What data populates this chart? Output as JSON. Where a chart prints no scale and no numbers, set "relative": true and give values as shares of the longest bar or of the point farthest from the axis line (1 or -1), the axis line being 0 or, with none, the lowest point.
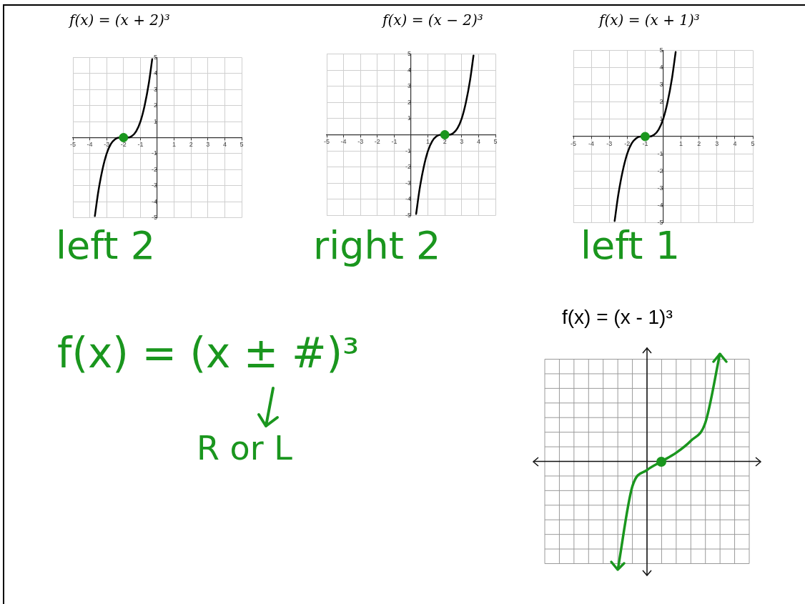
{
  "chart_data": [
    {
      "type": "line",
      "title": "f(x) = (x + 2)³",
      "xlim": [
        -5,
        5
      ],
      "ylim": [
        -5,
        5
      ],
      "xticks": [
        -5,
        -4,
        -3,
        -2,
        -1,
        1,
        2,
        3,
        4,
        5
      ],
      "yticks": [
        -5,
        -4,
        -3,
        -2,
        -1,
        1,
        2,
        3,
        4,
        5
      ],
      "grid": true,
      "annotations": [
        "left 2"
      ],
      "series": [
        {
          "type": "line",
          "color": "#000000",
          "x": [
            -3.7,
            -3.5,
            -3.25,
            -3,
            -2.75,
            -2.5,
            -2.25,
            -2,
            -1.75,
            -1.5,
            -1.25,
            -1,
            -0.75,
            -0.5,
            -0.3
          ],
          "values": [
            -4.9,
            -3.4,
            -2.0,
            -1,
            -0.4,
            -0.1,
            0,
            0,
            0,
            0.1,
            0.4,
            1,
            2.0,
            3.4,
            4.9
          ]
        },
        {
          "type": "scatter",
          "color": "#1a961e",
          "x": [
            -2
          ],
          "values": [
            0
          ]
        }
      ]
    },
    {
      "type": "line",
      "title": "f(x) = (x − 2)³",
      "xlim": [
        -5,
        5
      ],
      "ylim": [
        -5,
        5
      ],
      "xticks": [
        -5,
        -4,
        -3,
        -2,
        -1,
        1,
        2,
        3,
        4,
        5
      ],
      "yticks": [
        -5,
        -4,
        -3,
        -2,
        -1,
        1,
        2,
        3,
        4,
        5
      ],
      "grid": true,
      "annotations": [
        "right 2"
      ],
      "series": [
        {
          "type": "line",
          "color": "#000000",
          "x": [
            0.3,
            0.5,
            0.75,
            1,
            1.25,
            1.5,
            1.75,
            2,
            2.25,
            2.5,
            2.75,
            3,
            3.25,
            3.5,
            3.7
          ],
          "values": [
            -4.9,
            -3.4,
            -2.0,
            -1,
            -0.4,
            -0.1,
            0,
            0,
            0,
            0.1,
            0.4,
            1,
            2.0,
            3.4,
            4.9
          ]
        },
        {
          "type": "scatter",
          "color": "#1a961e",
          "x": [
            2
          ],
          "values": [
            0
          ]
        }
      ]
    },
    {
      "type": "line",
      "title": "f(x) = (x + 1)³",
      "xlim": [
        -5,
        5
      ],
      "ylim": [
        -5,
        5
      ],
      "xticks": [
        -5,
        -4,
        -3,
        -2,
        -1,
        1,
        2,
        3,
        4,
        5
      ],
      "yticks": [
        -5,
        -4,
        -3,
        -2,
        -1,
        1,
        2,
        3,
        4,
        5
      ],
      "grid": true,
      "annotations": [
        "left 1"
      ],
      "series": [
        {
          "type": "line",
          "color": "#000000",
          "x": [
            -2.7,
            -2.5,
            -2.25,
            -2,
            -1.75,
            -1.5,
            -1.25,
            -1,
            -0.75,
            -0.5,
            -0.25,
            0,
            0.25,
            0.5,
            0.7
          ],
          "values": [
            -4.9,
            -3.4,
            -2.0,
            -1,
            -0.4,
            -0.1,
            0,
            0,
            0,
            0.1,
            0.4,
            1,
            2.0,
            3.4,
            4.9
          ]
        },
        {
          "type": "scatter",
          "color": "#1a961e",
          "x": [
            -1
          ],
          "values": [
            0
          ]
        }
      ]
    },
    {
      "type": "line",
      "title": "f(x) = (x - 1)³",
      "relative": true,
      "grid": true,
      "tick_labels": false,
      "categories": [
        null,
        null,
        null,
        null,
        null,
        null,
        null,
        null
      ],
      "series": [
        {
          "type": "line",
          "color": "#1a961e",
          "values": [
            -1,
            -0.23,
            -0.08,
            0,
            0.08,
            0.19,
            0.36,
            1
          ]
        }
      ]
    },
    {
      "type": "other",
      "annotations": [
        "f(x) = (x ± #)³",
        "R or L"
      ]
    }
  ]
}
